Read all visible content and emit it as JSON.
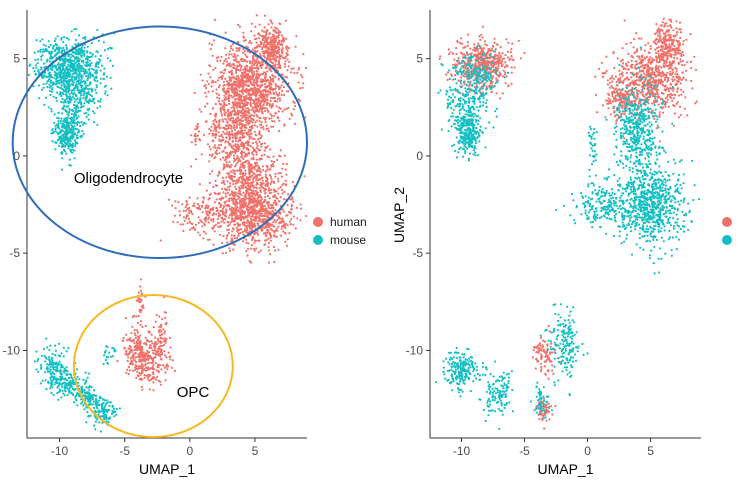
{
  "colors": {
    "human": "#F0716A",
    "mouse": "#14BFC3",
    "oligodendrocyte_circle": "#2F6DB8",
    "opc_circle": "#F5B826",
    "axis": "#333333"
  },
  "chart_data": [
    {
      "type": "scatter",
      "title": "",
      "xlabel": "UMAP_1",
      "ylabel": "",
      "xlim": [
        -12.5,
        9
      ],
      "ylim": [
        -14.5,
        7.5
      ],
      "xticks": [
        {
          "value": -10,
          "label": "-10"
        },
        {
          "value": -5,
          "label": "-5"
        },
        {
          "value": 0,
          "label": "0"
        },
        {
          "value": 5,
          "label": "5"
        }
      ],
      "yticks": [
        {
          "value": 5,
          "label": "5"
        },
        {
          "value": 0,
          "label": "0"
        },
        {
          "value": -5,
          "label": "-5"
        },
        {
          "value": -10,
          "label": "-10"
        }
      ],
      "grid": false,
      "legend": {
        "placement": "right",
        "entries": [
          {
            "label": "human",
            "color": "#F0716A"
          },
          {
            "label": "mouse",
            "color": "#14BFC3"
          }
        ]
      },
      "annotations": [
        {
          "text": "Oligodendrocyte",
          "x": -8.9,
          "y": -1.4,
          "circle": {
            "cx": -2.3,
            "cy": 0.7,
            "rx": 11.3,
            "ry": 5.95,
            "color": "#2F6DB8"
          }
        },
        {
          "text": "OPC",
          "x": -1.0,
          "y": -12.4,
          "circle": {
            "cx": -2.8,
            "cy": -10.8,
            "rx": 6.1,
            "ry": 3.65,
            "color": "#F5B826"
          }
        }
      ],
      "series": [
        {
          "category": "mouse",
          "clusters": [
            {
              "x": -9.3,
              "y": 4.6,
              "sx": 1.3,
              "sy": 0.7,
              "n": 700
            },
            {
              "x": -8.6,
              "y": 3.0,
              "sx": 0.9,
              "sy": 0.6,
              "n": 200
            },
            {
              "x": -9.4,
              "y": 1.2,
              "sx": 0.5,
              "sy": 0.55,
              "n": 300
            },
            {
              "x": -10.4,
              "y": -10.8,
              "sx": 0.5,
              "sy": 0.5,
              "n": 120
            },
            {
              "x": -9.5,
              "y": -11.7,
              "sx": 0.7,
              "sy": 0.35,
              "n": 140
            },
            {
              "x": -7.9,
              "y": -12.4,
              "sx": 0.5,
              "sy": 0.35,
              "n": 100
            },
            {
              "x": -6.7,
              "y": -13.1,
              "sx": 0.45,
              "sy": 0.4,
              "n": 120
            },
            {
              "x": -6.2,
              "y": -10.2,
              "sx": 0.3,
              "sy": 0.3,
              "n": 20
            }
          ]
        },
        {
          "category": "human",
          "clusters": [
            {
              "x": 6.3,
              "y": 5.6,
              "sx": 0.6,
              "sy": 0.6,
              "n": 300
            },
            {
              "x": 4.8,
              "y": 3.6,
              "sx": 1.5,
              "sy": 1.1,
              "n": 1000
            },
            {
              "x": 3.8,
              "y": 1.2,
              "sx": 1.0,
              "sy": 1.3,
              "n": 500
            },
            {
              "x": 4.6,
              "y": -1.6,
              "sx": 1.3,
              "sy": 1.0,
              "n": 500
            },
            {
              "x": 5.2,
              "y": -3.1,
              "sx": 1.4,
              "sy": 0.8,
              "n": 600
            },
            {
              "x": 1.6,
              "y": -3.0,
              "sx": 1.5,
              "sy": 0.6,
              "n": 200
            },
            {
              "x": 2.0,
              "y": 1.0,
              "sx": 0.3,
              "sy": 0.6,
              "n": 60
            },
            {
              "x": 0.5,
              "y": 1.1,
              "sx": 0.15,
              "sy": 0.5,
              "n": 20
            },
            {
              "x": -4.2,
              "y": -9.8,
              "sx": 0.45,
              "sy": 0.6,
              "n": 100
            },
            {
              "x": -3.2,
              "y": -10.5,
              "sx": 0.8,
              "sy": 0.6,
              "n": 250
            },
            {
              "x": -2.2,
              "y": -9.2,
              "sx": 0.3,
              "sy": 0.9,
              "n": 60
            },
            {
              "x": -3.8,
              "y": -7.4,
              "sx": 0.15,
              "sy": 0.6,
              "n": 30
            }
          ]
        }
      ]
    },
    {
      "type": "scatter",
      "title": "",
      "xlabel": "UMAP_1",
      "ylabel": "UMAP_2",
      "xlim": [
        -12.5,
        9
      ],
      "ylim": [
        -14.5,
        7.5
      ],
      "xticks": [
        {
          "value": -10,
          "label": "-10"
        },
        {
          "value": -5,
          "label": "-5"
        },
        {
          "value": 0,
          "label": "0"
        },
        {
          "value": 5,
          "label": "5"
        }
      ],
      "yticks": [
        {
          "value": 5,
          "label": "5"
        },
        {
          "value": 0,
          "label": "0"
        },
        {
          "value": -5,
          "label": "-5"
        },
        {
          "value": -10,
          "label": "-10"
        }
      ],
      "grid": false,
      "legend": {
        "placement": "right",
        "entries": [
          {
            "label": "",
            "color": "#F0716A"
          },
          {
            "label": "",
            "color": "#14BFC3"
          }
        ]
      },
      "annotations": [],
      "series": [
        {
          "category": "human",
          "clusters": [
            {
              "x": -8.3,
              "y": 4.7,
              "sx": 1.2,
              "sy": 0.6,
              "n": 500
            },
            {
              "x": 6.3,
              "y": 5.6,
              "sx": 0.6,
              "sy": 0.6,
              "n": 250
            },
            {
              "x": 4.8,
              "y": 3.8,
              "sx": 1.5,
              "sy": 0.9,
              "n": 650
            },
            {
              "x": 2.5,
              "y": 3.0,
              "sx": 0.5,
              "sy": 0.6,
              "n": 120
            },
            {
              "x": -3.4,
              "y": -10.2,
              "sx": 0.5,
              "sy": 0.5,
              "n": 90
            },
            {
              "x": -3.5,
              "y": -13.0,
              "sx": 0.3,
              "sy": 0.35,
              "n": 60
            }
          ]
        },
        {
          "category": "mouse",
          "clusters": [
            {
              "x": -9.5,
              "y": 2.8,
              "sx": 0.9,
              "sy": 0.7,
              "n": 200
            },
            {
              "x": -9.5,
              "y": 1.2,
              "sx": 0.5,
              "sy": 0.55,
              "n": 250
            },
            {
              "x": -8.8,
              "y": 4.3,
              "sx": 0.9,
              "sy": 0.5,
              "n": 150
            },
            {
              "x": 4.0,
              "y": 1.4,
              "sx": 0.9,
              "sy": 1.2,
              "n": 450
            },
            {
              "x": 5.0,
              "y": -2.5,
              "sx": 1.3,
              "sy": 1.0,
              "n": 700
            },
            {
              "x": 1.5,
              "y": -2.5,
              "sx": 1.3,
              "sy": 0.6,
              "n": 200
            },
            {
              "x": 0.4,
              "y": 0.8,
              "sx": 0.15,
              "sy": 0.5,
              "n": 30
            },
            {
              "x": -10.0,
              "y": -11.0,
              "sx": 0.7,
              "sy": 0.5,
              "n": 200
            },
            {
              "x": -7.2,
              "y": -12.2,
              "sx": 0.6,
              "sy": 0.6,
              "n": 120
            },
            {
              "x": -1.8,
              "y": -9.6,
              "sx": 0.6,
              "sy": 0.9,
              "n": 160
            },
            {
              "x": -3.7,
              "y": -12.6,
              "sx": 0.3,
              "sy": 0.4,
              "n": 50
            }
          ]
        }
      ]
    }
  ]
}
